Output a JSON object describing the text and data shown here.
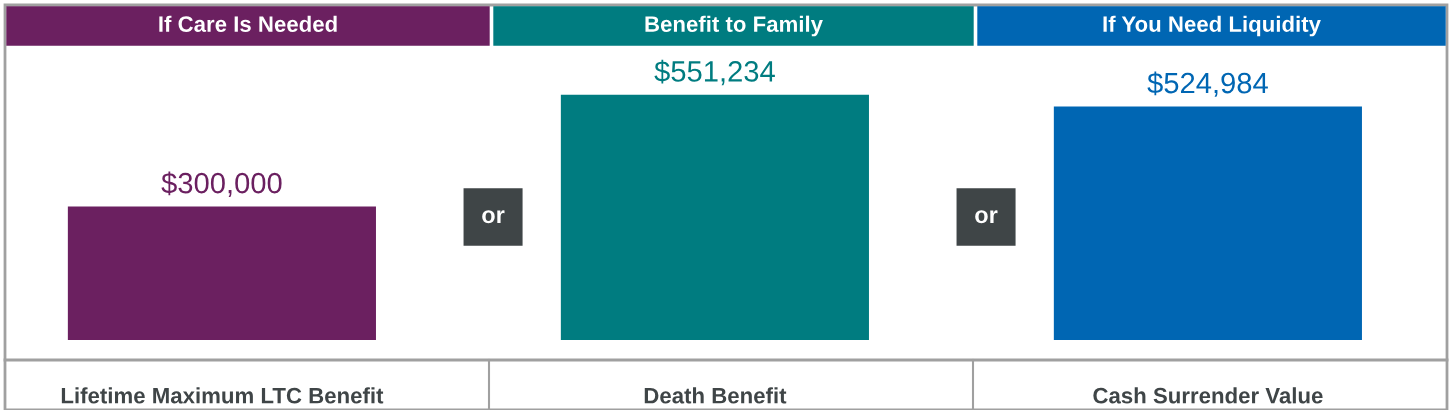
{
  "chart_data": {
    "type": "bar",
    "categories": [
      "Lifetime Maximum LTC Benefit",
      "Death Benefit",
      "Cash Surrender Value"
    ],
    "values": [
      300000,
      551234,
      524984
    ],
    "colors": [
      "#6b2060",
      "#007c80",
      "#0066b3"
    ],
    "value_labels": [
      "$300,000",
      "$551,234",
      "$524,984"
    ],
    "tick_labels": "x",
    "annotations": [
      "If Care Is Needed",
      "Benefit to Family",
      "If You Need Liquidity",
      "or",
      "or"
    ]
  }
}
